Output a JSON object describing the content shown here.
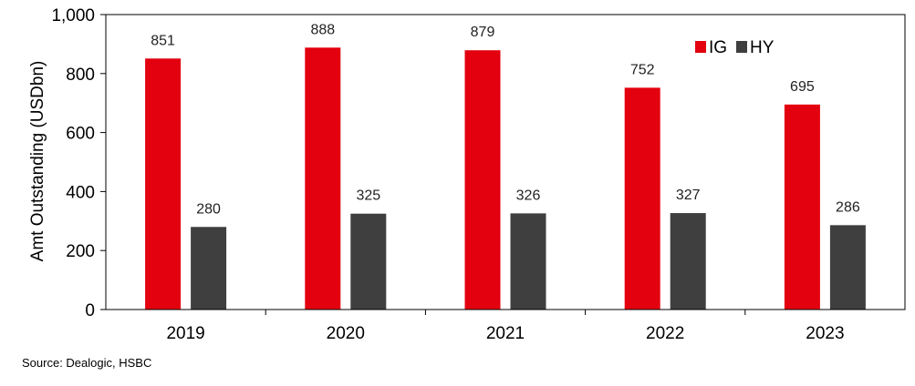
{
  "chart_data": {
    "type": "bar",
    "categories": [
      "2019",
      "2020",
      "2021",
      "2022",
      "2023"
    ],
    "series": [
      {
        "name": "IG",
        "values": [
          851,
          888,
          879,
          752,
          695
        ],
        "color": "#e3000f"
      },
      {
        "name": "HY",
        "values": [
          280,
          325,
          326,
          327,
          286
        ],
        "color": "#3f3f3f"
      }
    ],
    "ylabel": "Amt Outstanding (USDbn)",
    "ylim": [
      0,
      1000
    ],
    "yticks": [
      "0",
      "200",
      "400",
      "600",
      "800",
      "1,000"
    ],
    "grid": false,
    "legend": "top-right"
  },
  "source": "Source: Dealogic, HSBC"
}
